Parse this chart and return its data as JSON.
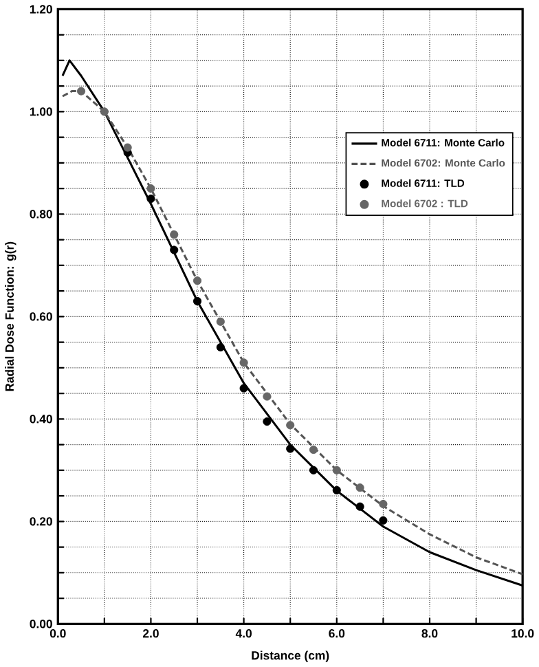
{
  "chart_data": {
    "type": "line",
    "xlabel": "Distance (cm)",
    "ylabel": "Radial Dose Function: g(r)",
    "xlim": [
      0,
      10
    ],
    "ylim": [
      0,
      1.2
    ],
    "xticks": [
      {
        "value": 0,
        "label": "0.0"
      },
      {
        "value": 1,
        "label": null
      },
      {
        "value": 2,
        "label": "2.0"
      },
      {
        "value": 3,
        "label": null
      },
      {
        "value": 4,
        "label": "4.0"
      },
      {
        "value": 5,
        "label": null
      },
      {
        "value": 6,
        "label": "6.0"
      },
      {
        "value": 7,
        "label": null
      },
      {
        "value": 8,
        "label": "8.0"
      },
      {
        "value": 9,
        "label": null
      },
      {
        "value": 10,
        "label": "10.0"
      }
    ],
    "yticks": [
      {
        "value": 0,
        "label": "0.00"
      },
      {
        "value": 0.05,
        "label": null
      },
      {
        "value": 0.1,
        "label": null
      },
      {
        "value": 0.15,
        "label": null
      },
      {
        "value": 0.2,
        "label": "0.20"
      },
      {
        "value": 0.25,
        "label": null
      },
      {
        "value": 0.3,
        "label": null
      },
      {
        "value": 0.35,
        "label": null
      },
      {
        "value": 0.4,
        "label": "0.40"
      },
      {
        "value": 0.45,
        "label": null
      },
      {
        "value": 0.5,
        "label": null
      },
      {
        "value": 0.55,
        "label": null
      },
      {
        "value": 0.6,
        "label": "0.60"
      },
      {
        "value": 0.65,
        "label": null
      },
      {
        "value": 0.7,
        "label": null
      },
      {
        "value": 0.75,
        "label": null
      },
      {
        "value": 0.8,
        "label": "0.80"
      },
      {
        "value": 0.85,
        "label": null
      },
      {
        "value": 0.9,
        "label": null
      },
      {
        "value": 0.95,
        "label": null
      },
      {
        "value": 1.0,
        "label": "1.00"
      },
      {
        "value": 1.05,
        "label": null
      },
      {
        "value": 1.1,
        "label": null
      },
      {
        "value": 1.15,
        "label": null
      },
      {
        "value": 1.2,
        "label": "1.20"
      }
    ],
    "grid": true,
    "legend": "right",
    "series": [
      {
        "name": "Model 6711:  Monte Carlo",
        "line_style": "solid",
        "marker": "none",
        "color": "#000000",
        "x": [
          0.1,
          0.25,
          0.5,
          1,
          1.5,
          2,
          3,
          4,
          5,
          6,
          7,
          8,
          9,
          10
        ],
        "values": [
          1.07,
          1.1,
          1.07,
          1.0,
          0.91,
          0.82,
          0.63,
          0.47,
          0.35,
          0.26,
          0.19,
          0.14,
          0.105,
          0.075
        ]
      },
      {
        "name": "Model 6702:  Monte Carlo",
        "line_style": "dashed",
        "marker": "none",
        "color": "#555555",
        "x": [
          0.1,
          0.3,
          0.5,
          1,
          1.5,
          2,
          3,
          4,
          5,
          6,
          7,
          8,
          9,
          10
        ],
        "values": [
          1.03,
          1.04,
          1.04,
          1.0,
          0.93,
          0.85,
          0.67,
          0.51,
          0.39,
          0.3,
          0.23,
          0.175,
          0.13,
          0.097
        ]
      },
      {
        "name": "Model 6711:  TLD",
        "type": "scatter",
        "marker": "circle",
        "color": "#000000",
        "x": [
          1.5,
          2,
          2.5,
          3,
          3.5,
          4,
          4.5,
          5,
          5.5,
          6,
          6.5,
          7
        ],
        "values": [
          0.92,
          0.83,
          0.73,
          0.63,
          0.54,
          0.46,
          0.395,
          0.342,
          0.3,
          0.261,
          0.229,
          0.202
        ]
      },
      {
        "name": "Model 6702 :  TLD",
        "type": "scatter",
        "marker": "circle",
        "color": "#666666",
        "x": [
          0.5,
          1,
          1.5,
          2,
          2.5,
          3,
          3.5,
          4,
          4.5,
          5,
          5.5,
          6,
          6.5,
          7
        ],
        "values": [
          1.04,
          1.0,
          0.93,
          0.85,
          0.76,
          0.67,
          0.59,
          0.51,
          0.444,
          0.388,
          0.34,
          0.3,
          0.266,
          0.234
        ]
      }
    ]
  }
}
